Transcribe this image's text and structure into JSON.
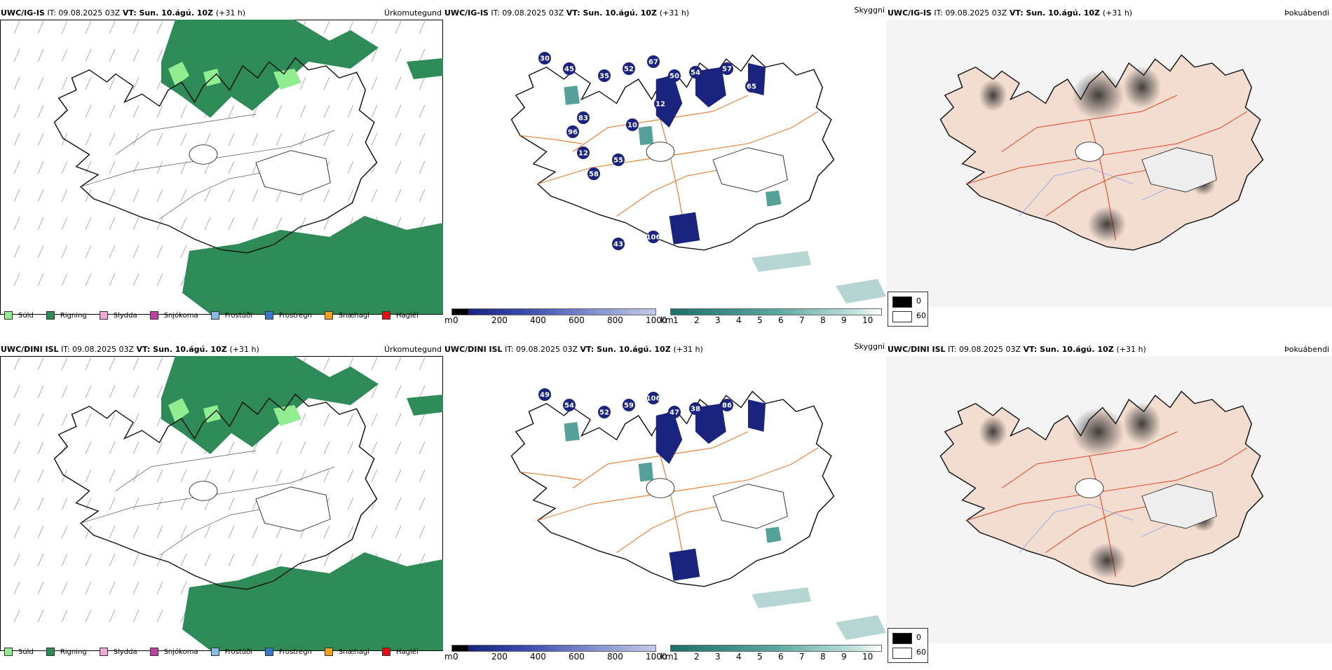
{
  "rows": [
    {
      "model": "UWC/IG-IS",
      "header": {
        "model": "UWC/IG-IS",
        "it": " IT: 09.08.2025 03Z ",
        "vt_label": "VT:",
        "vt_value": " Sun. 10.ágú. 10Z ",
        "lead": "(+31 h)"
      },
      "precip_title": "Úrkomutegund",
      "cloud_title": "Skyggni",
      "fog_title": "Þokuábendi",
      "cloud_numbers": [
        "30",
        "45",
        "35",
        "52",
        "67",
        "50",
        "54",
        "57",
        "65",
        "96",
        "12",
        "58",
        "55",
        "10",
        "83",
        "12",
        "43",
        "106"
      ]
    },
    {
      "model": "UWC/DINI ISL",
      "header": {
        "model": "UWC/DINI ISL",
        "it": " IT: 09.08.2025 03Z ",
        "vt_label": "VT:",
        "vt_value": " Sun. 10.ágú. 10Z ",
        "lead": "(+31 h)"
      },
      "precip_title": "Úrkomutegund",
      "cloud_title": "Skyggni",
      "fog_title": "Þokuábendi",
      "cloud_numbers": [
        "49",
        "54",
        "52",
        "59",
        "106",
        "47",
        "38",
        "86"
      ]
    }
  ],
  "precip_legend": [
    {
      "label": "Súld",
      "color": "#90ee90"
    },
    {
      "label": "Rigning",
      "color": "#2e8b57"
    },
    {
      "label": "Slydda",
      "color": "#f0a8d8"
    },
    {
      "label": "Snjókoma",
      "color": "#c040a0"
    },
    {
      "label": "Frostúði",
      "color": "#8ab8e8"
    },
    {
      "label": "Frostregn",
      "color": "#3a78c8"
    },
    {
      "label": "Snæhagl",
      "color": "#f0a020"
    },
    {
      "label": "Haglél",
      "color": "#e01010"
    }
  ],
  "cloud_base_bar": {
    "unit": "m",
    "ticks": [
      "0",
      "200",
      "400",
      "600",
      "800",
      "1000"
    ]
  },
  "visibility_bar": {
    "unit": "km",
    "ticks": [
      "1",
      "2",
      "3",
      "4",
      "5",
      "6",
      "7",
      "8",
      "9",
      "10"
    ]
  },
  "fog_legend": {
    "high": "0",
    "low": "60"
  },
  "colors": {
    "rain": "#2e8b57",
    "drizzle": "#90ee90",
    "cloudbase_dark": "#1a237e",
    "vis_teal": "#2a8a80",
    "land_fog": "#f3ddd0",
    "roads": "#e8823a"
  }
}
